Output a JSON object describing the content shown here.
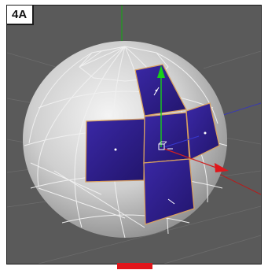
{
  "figure_label": "4A",
  "viewport": {
    "background_color": "#5a5a5a",
    "mesh_color": "#d6d6d6",
    "wire_color": "#f2f2f2",
    "selected_face_color": "#2e1e8a",
    "selection_outline_color": "#d8a060",
    "axis_colors": {
      "x": "#e0161b",
      "y": "#18d018",
      "z": "#3030c0"
    },
    "grid_color": "#6a6a6a"
  },
  "timeline_marker_color": "#e0161b"
}
